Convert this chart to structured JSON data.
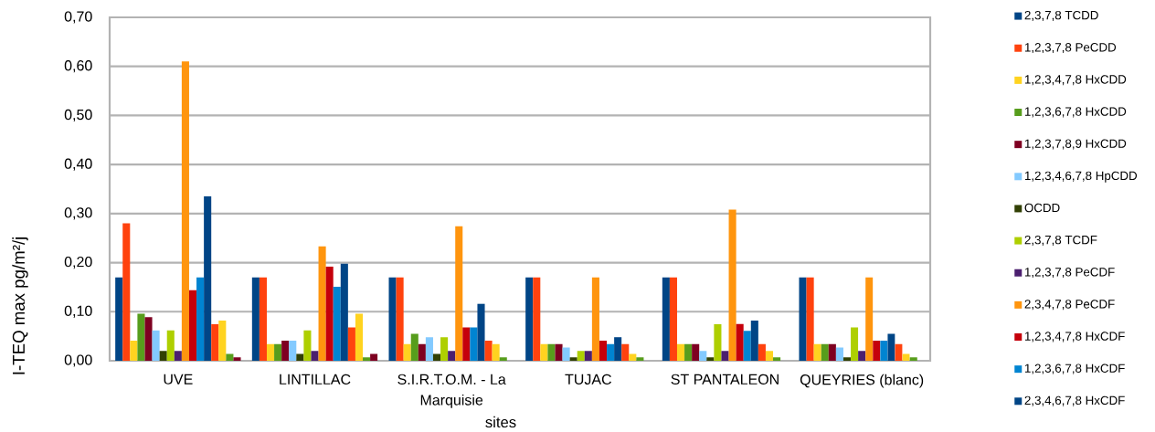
{
  "chart_data": {
    "type": "bar",
    "xlabel": "sites",
    "ylabel": "I-TEQ max pg/m²/j",
    "categories": [
      "UVE",
      "LINTILLAC",
      "S.I.R.T.O.M. - La Marquisie",
      "TUJAC",
      "ST PANTALEON",
      "QUEYRIES (blanc)"
    ],
    "ylim": [
      0,
      0.7
    ],
    "yticks": [
      {
        "value": 0,
        "label": "0,00"
      },
      {
        "value": 0.1,
        "label": "0,10"
      },
      {
        "value": 0.2,
        "label": "0,20"
      },
      {
        "value": 0.3,
        "label": "0,30"
      },
      {
        "value": 0.4,
        "label": "0,40"
      },
      {
        "value": 0.5,
        "label": "0,50"
      },
      {
        "value": 0.6,
        "label": "0,60"
      },
      {
        "value": 0.7,
        "label": "0,70"
      }
    ],
    "grid": "y",
    "legend": "right",
    "series": [
      {
        "name": "2,3,7,8 TCDD",
        "color": "#004586",
        "values": [
          0.17,
          0.17,
          0.17,
          0.17,
          0.17,
          0.17
        ]
      },
      {
        "name": "1,2,3,7,8 PeCDD",
        "color": "#ff420e",
        "values": [
          0.28,
          0.17,
          0.17,
          0.17,
          0.17,
          0.17
        ]
      },
      {
        "name": "1,2,3,4,7,8 HxCDD",
        "color": "#ffd320",
        "values": [
          0.041,
          0.034,
          0.034,
          0.034,
          0.034,
          0.034
        ]
      },
      {
        "name": "1,2,3,6,7,8 HxCDD",
        "color": "#579d1c",
        "values": [
          0.096,
          0.034,
          0.055,
          0.034,
          0.034,
          0.034
        ]
      },
      {
        "name": "1,2,3,7,8,9 HxCDD",
        "color": "#7e0021",
        "values": [
          0.089,
          0.041,
          0.034,
          0.034,
          0.034,
          0.034
        ]
      },
      {
        "name": "1,2,3,4,6,7,8 HpCDD",
        "color": "#83caff",
        "values": [
          0.062,
          0.041,
          0.048,
          0.027,
          0.02,
          0.027
        ]
      },
      {
        "name": "OCDD",
        "color": "#314004",
        "values": [
          0.02,
          0.014,
          0.014,
          0.007,
          0.007,
          0.007
        ]
      },
      {
        "name": "2,3,7,8 TCDF",
        "color": "#aecf00",
        "values": [
          0.062,
          0.062,
          0.048,
          0.02,
          0.075,
          0.068
        ]
      },
      {
        "name": "1,2,3,7,8 PeCDF",
        "color": "#4b1f6f",
        "values": [
          0.02,
          0.02,
          0.02,
          0.02,
          0.02,
          0.02
        ]
      },
      {
        "name": "2,3,4,7,8 PeCDF",
        "color": "#ff950e",
        "values": [
          0.61,
          0.233,
          0.274,
          0.17,
          0.308,
          0.17
        ]
      },
      {
        "name": "1,2,3,4,7,8 HxCDF",
        "color": "#c5000b",
        "values": [
          0.144,
          0.192,
          0.068,
          0.041,
          0.075,
          0.041
        ]
      },
      {
        "name": "1,2,3,6,7,8 HxCDF",
        "color": "#0084d1",
        "values": [
          0.17,
          0.151,
          0.068,
          0.034,
          0.061,
          0.041
        ]
      },
      {
        "name": "2,3,4,6,7,8 HxCDF",
        "color": "#004586",
        "values": [
          0.335,
          0.198,
          0.116,
          0.048,
          0.082,
          0.055
        ]
      },
      {
        "color": "#ff420e",
        "values": [
          0.075,
          0.068,
          0.041,
          0.034,
          0.034,
          0.034
        ]
      },
      {
        "color": "#ffd320",
        "values": [
          0.082,
          0.096,
          0.034,
          0.014,
          0.02,
          0.014
        ]
      },
      {
        "color": "#579d1c",
        "values": [
          0.014,
          0.007,
          0.007,
          0.007,
          0.007,
          0.007
        ]
      },
      {
        "color": "#7e0021",
        "values": [
          0.007,
          0.014,
          null,
          null,
          null,
          null
        ]
      }
    ]
  }
}
